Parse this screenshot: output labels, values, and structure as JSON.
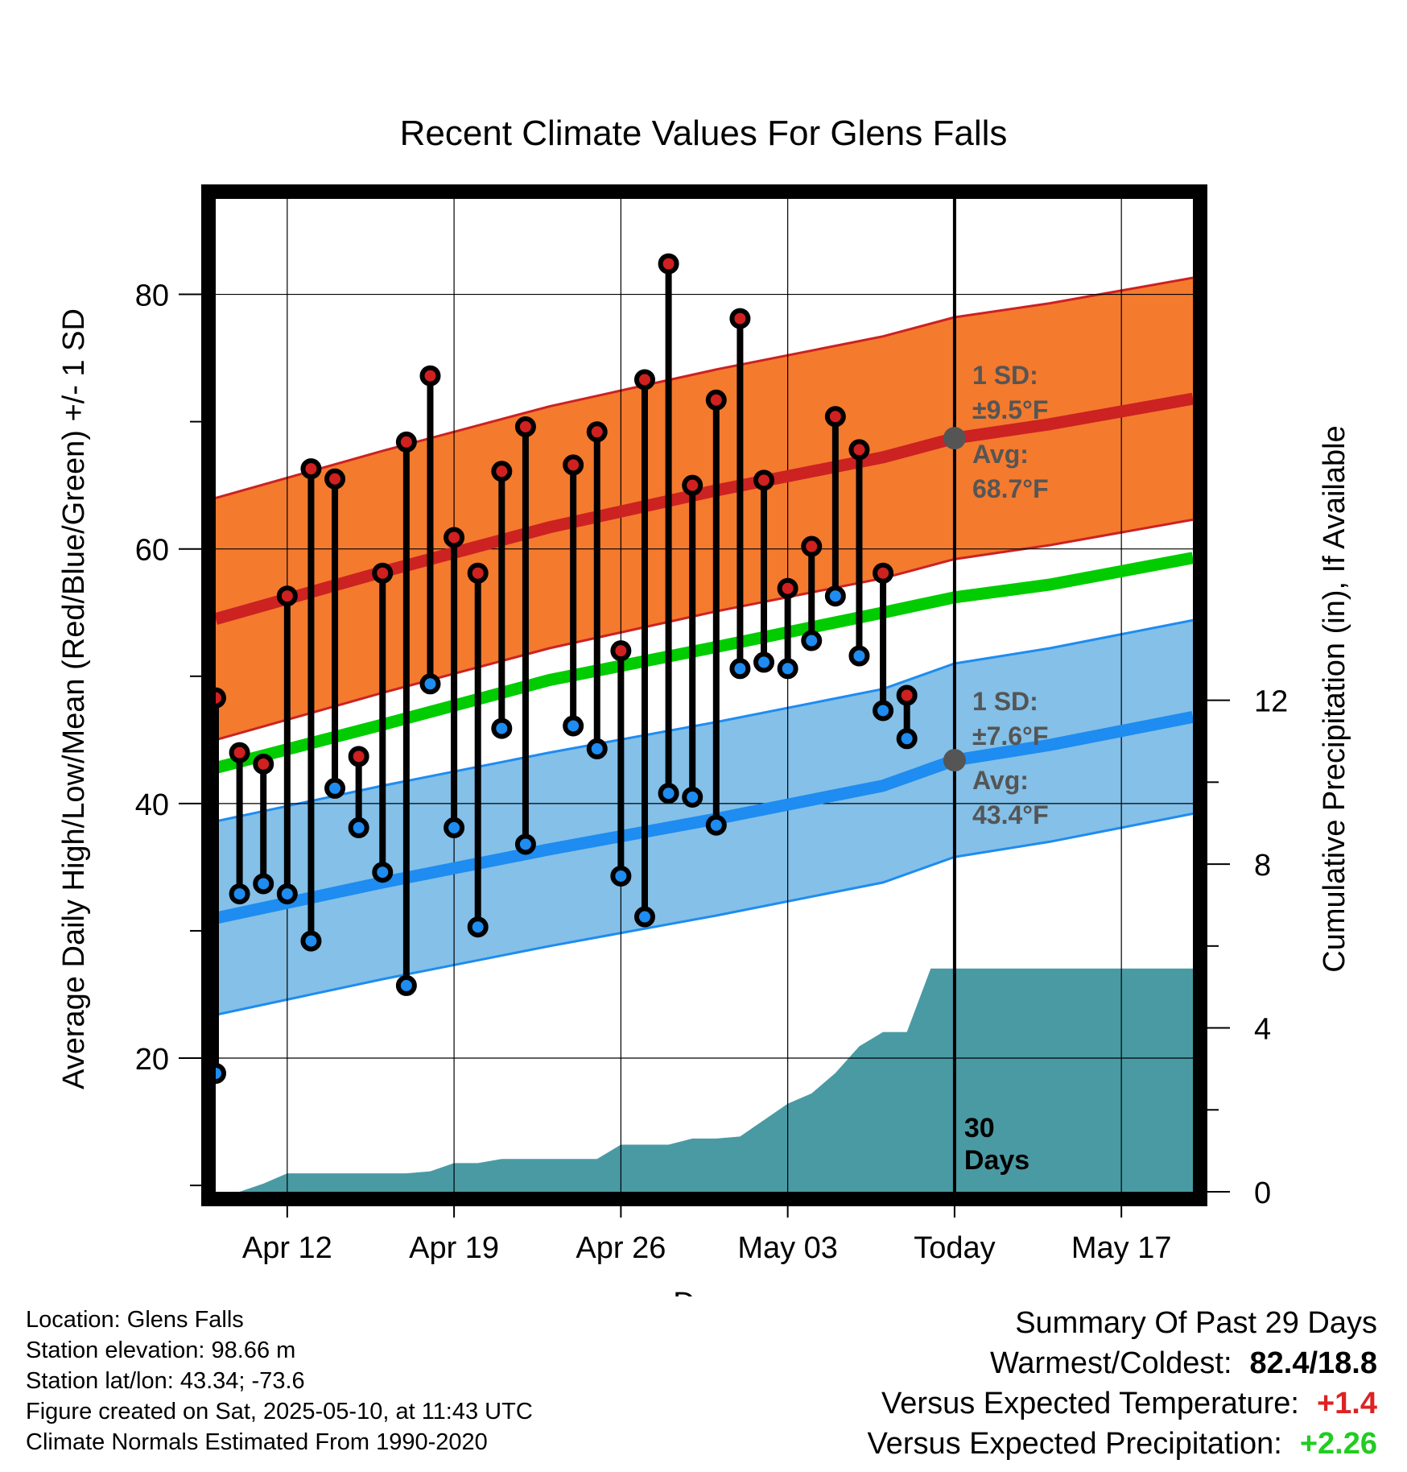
{
  "chart_data": {
    "type": "line",
    "title": "Recent Climate Values For Glens Falls",
    "xlabel": "Day",
    "ylabel_left": "Average Daily High/Low/Mean (Red/Blue/Green) +/- 1 SD",
    "ylabel_right": "Cumulative Precipitation (in), If Available",
    "xlim": [
      "2025-04-09",
      "2025-05-20"
    ],
    "ylim_left": [
      9.5,
      87.5
    ],
    "ylim_right": [
      0,
      24.24
    ],
    "x_ticks": [
      {
        "date": "2025-04-12",
        "label": "Apr 12"
      },
      {
        "date": "2025-04-19",
        "label": "Apr 19"
      },
      {
        "date": "2025-04-26",
        "label": "Apr 26"
      },
      {
        "date": "2025-05-03",
        "label": "May 03"
      },
      {
        "date": "2025-05-10",
        "label": "Today"
      },
      {
        "date": "2025-05-17",
        "label": "May 17"
      }
    ],
    "y_ticks_left": [
      20,
      40,
      60,
      80
    ],
    "y_ticks_right": [
      0,
      4,
      8,
      12
    ],
    "grid": true,
    "today": "2025-05-10",
    "today_label": "30\nDays",
    "daily_observations": {
      "dates": [
        "2025-04-09",
        "2025-04-10",
        "2025-04-11",
        "2025-04-12",
        "2025-04-13",
        "2025-04-14",
        "2025-04-15",
        "2025-04-16",
        "2025-04-17",
        "2025-04-18",
        "2025-04-19",
        "2025-04-20",
        "2025-04-21",
        "2025-04-22",
        "2025-04-23",
        "2025-04-24",
        "2025-04-25",
        "2025-04-26",
        "2025-04-27",
        "2025-04-28",
        "2025-04-29",
        "2025-04-30",
        "2025-05-01",
        "2025-05-02",
        "2025-05-03",
        "2025-05-04",
        "2025-05-05",
        "2025-05-06",
        "2025-05-07",
        "2025-05-08",
        "2025-05-09"
      ],
      "highs": [
        48.3,
        44.0,
        43.1,
        56.3,
        66.3,
        65.5,
        43.7,
        58.1,
        68.4,
        73.6,
        60.9,
        58.1,
        66.1,
        69.6,
        null,
        66.6,
        69.2,
        52.0,
        73.3,
        82.4,
        65.0,
        71.7,
        78.1,
        65.4,
        56.9,
        60.2,
        70.4,
        67.8,
        58.1,
        48.5,
        null
      ],
      "lows": [
        18.8,
        32.9,
        33.7,
        32.9,
        29.2,
        41.2,
        38.1,
        34.6,
        25.7,
        49.4,
        38.1,
        30.3,
        45.9,
        36.8,
        null,
        46.1,
        44.3,
        34.3,
        31.1,
        40.8,
        40.5,
        38.3,
        50.6,
        51.1,
        50.6,
        52.8,
        56.3,
        51.6,
        47.3,
        45.1,
        null
      ]
    },
    "normals": {
      "dates": [
        "2025-04-09",
        "2025-04-16",
        "2025-04-23",
        "2025-04-30",
        "2025-05-07",
        "2025-05-10",
        "2025-05-14",
        "2025-05-20"
      ],
      "avg_high": [
        54.5,
        58.2,
        61.7,
        64.6,
        67.2,
        68.7,
        69.8,
        71.8
      ],
      "avg_low": [
        31.0,
        33.8,
        36.4,
        38.8,
        41.4,
        43.4,
        44.6,
        46.8
      ],
      "mean": [
        42.8,
        46.2,
        49.7,
        52.3,
        55.0,
        56.2,
        57.2,
        59.3
      ],
      "sd_high": 9.5,
      "sd_low": 7.6
    },
    "cumulative_precipitation": {
      "dates": [
        "2025-04-10",
        "2025-04-11",
        "2025-04-12",
        "2025-04-13",
        "2025-04-17",
        "2025-04-18",
        "2025-04-19",
        "2025-04-20",
        "2025-04-21",
        "2025-04-22",
        "2025-04-25",
        "2025-04-26",
        "2025-04-27",
        "2025-04-28",
        "2025-04-29",
        "2025-04-30",
        "2025-05-01",
        "2025-05-02",
        "2025-05-03",
        "2025-05-04",
        "2025-05-05",
        "2025-05-06",
        "2025-05-07",
        "2025-05-08",
        "2025-05-09",
        "2025-05-20"
      ],
      "values": [
        0.0,
        0.2,
        0.45,
        0.45,
        0.45,
        0.5,
        0.7,
        0.7,
        0.8,
        0.8,
        0.8,
        1.15,
        1.15,
        1.15,
        1.3,
        1.3,
        1.35,
        1.75,
        2.15,
        2.4,
        2.9,
        3.55,
        3.9,
        3.9,
        5.45,
        5.45
      ]
    },
    "annotations": {
      "high": {
        "sd_label": "1 SD:",
        "sd_value": "±9.5°F",
        "avg_label": "Avg:",
        "avg_value": "68.7°F"
      },
      "low": {
        "sd_label": "1 SD:",
        "sd_value": "±7.6°F",
        "avg_label": "Avg:",
        "avg_value": "43.4°F"
      }
    }
  },
  "colors": {
    "high_band": "#f47a2e",
    "high_line": "#cc2222",
    "low_band": "#84c0e8",
    "low_line": "#1e8cf0",
    "mean_line": "#00cc00",
    "precip": "#4a9aa4",
    "high_dot": "#d02020",
    "low_dot": "#1e8cf0"
  },
  "info": {
    "location": "Location: Glens Falls",
    "elevation": "Station elevation: 98.66 m",
    "latlon": "Station lat/lon: 43.34; -73.6",
    "created": "Figure created on Sat, 2025-05-10, at 11:43 UTC",
    "normals": "Climate Normals Estimated From 1990-2020"
  },
  "summary": {
    "heading": "Summary Of Past 29 Days",
    "warmest_label": "Warmest/Coldest:",
    "warmest_value": "82.4/18.8",
    "temp_label": "Versus Expected Temperature:",
    "temp_value": "+1.4",
    "temp_color": "#dd2222",
    "precip_label": "Versus Expected Precipitation:",
    "precip_value": "+2.26",
    "precip_color": "#22cc22"
  }
}
